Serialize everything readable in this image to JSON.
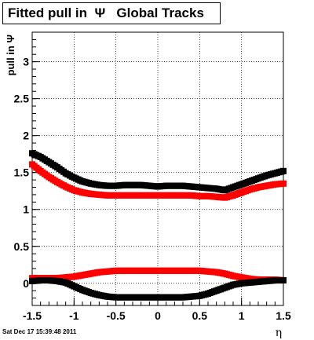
{
  "title": "Fitted pull in  Ψ   Global Tracks",
  "timestamp": "Sat Dec 17 15:39:48 2011",
  "chart_data": {
    "type": "scatter",
    "title": "Fitted pull in  Ψ   Global Tracks",
    "xlabel": "η",
    "ylabel": "pull in Ψ",
    "xlim": [
      -1.5,
      1.5
    ],
    "ylim": [
      -0.3,
      3.4
    ],
    "grid": true,
    "x_ticks": [
      "-1.5",
      "-1",
      "-0.5",
      "0",
      "0.5",
      "1",
      "1.5"
    ],
    "y_ticks": [
      "0",
      "0.5",
      "1",
      "1.5",
      "2",
      "2.5",
      "3"
    ],
    "x_tick_values": [
      -1.5,
      -1,
      -0.5,
      0,
      0.5,
      1,
      1.5
    ],
    "y_tick_values": [
      0,
      0.5,
      1,
      1.5,
      2,
      2.5,
      3
    ],
    "series": [
      {
        "color": "#000000",
        "x": [
          -1.5,
          -1.4,
          -1.3,
          -1.2,
          -1.1,
          -1.0,
          -0.9,
          -0.8,
          -0.7,
          -0.6,
          -0.5,
          -0.4,
          -0.3,
          -0.2,
          -0.1,
          0.0,
          0.1,
          0.2,
          0.3,
          0.4,
          0.5,
          0.6,
          0.7,
          0.8,
          0.9,
          1.0,
          1.1,
          1.2,
          1.3,
          1.4,
          1.5
        ],
        "y": [
          1.76,
          1.71,
          1.64,
          1.57,
          1.49,
          1.43,
          1.38,
          1.35,
          1.33,
          1.32,
          1.32,
          1.33,
          1.33,
          1.33,
          1.32,
          1.31,
          1.32,
          1.32,
          1.32,
          1.31,
          1.3,
          1.29,
          1.28,
          1.26,
          1.3,
          1.34,
          1.38,
          1.42,
          1.46,
          1.49,
          1.52
        ]
      },
      {
        "color": "#ff0000",
        "x": [
          -1.5,
          -1.4,
          -1.3,
          -1.2,
          -1.1,
          -1.0,
          -0.9,
          -0.8,
          -0.7,
          -0.6,
          -0.5,
          -0.4,
          -0.3,
          -0.2,
          -0.1,
          0.0,
          0.1,
          0.2,
          0.3,
          0.4,
          0.5,
          0.6,
          0.7,
          0.8,
          0.9,
          1.0,
          1.1,
          1.2,
          1.3,
          1.4,
          1.5
        ],
        "y": [
          1.61,
          1.52,
          1.44,
          1.37,
          1.31,
          1.26,
          1.23,
          1.21,
          1.2,
          1.19,
          1.19,
          1.19,
          1.19,
          1.19,
          1.19,
          1.19,
          1.19,
          1.19,
          1.19,
          1.19,
          1.18,
          1.18,
          1.17,
          1.16,
          1.19,
          1.23,
          1.27,
          1.3,
          1.32,
          1.34,
          1.35
        ]
      },
      {
        "color": "#ff0000",
        "x": [
          -1.5,
          -1.4,
          -1.3,
          -1.2,
          -1.1,
          -1.0,
          -0.9,
          -0.8,
          -0.7,
          -0.6,
          -0.5,
          -0.4,
          -0.3,
          -0.2,
          -0.1,
          0.0,
          0.1,
          0.2,
          0.3,
          0.4,
          0.5,
          0.6,
          0.7,
          0.8,
          0.9,
          1.0,
          1.1,
          1.2,
          1.3,
          1.4,
          1.5
        ],
        "y": [
          0.07,
          0.07,
          0.07,
          0.07,
          0.08,
          0.09,
          0.11,
          0.13,
          0.15,
          0.16,
          0.17,
          0.17,
          0.17,
          0.17,
          0.17,
          0.17,
          0.17,
          0.17,
          0.17,
          0.17,
          0.17,
          0.16,
          0.15,
          0.13,
          0.1,
          0.08,
          0.06,
          0.05,
          0.05,
          0.05,
          0.04
        ]
      },
      {
        "color": "#000000",
        "x": [
          -1.5,
          -1.4,
          -1.3,
          -1.2,
          -1.1,
          -1.0,
          -0.9,
          -0.8,
          -0.7,
          -0.6,
          -0.5,
          -0.4,
          -0.3,
          -0.2,
          -0.1,
          0.0,
          0.1,
          0.2,
          0.3,
          0.4,
          0.5,
          0.6,
          0.7,
          0.8,
          0.9,
          1.0,
          1.1,
          1.2,
          1.3,
          1.4,
          1.5
        ],
        "y": [
          0.03,
          0.04,
          0.04,
          0.03,
          0.01,
          -0.04,
          -0.09,
          -0.13,
          -0.16,
          -0.18,
          -0.19,
          -0.19,
          -0.19,
          -0.19,
          -0.19,
          -0.19,
          -0.19,
          -0.19,
          -0.19,
          -0.18,
          -0.17,
          -0.14,
          -0.1,
          -0.06,
          -0.02,
          0.0,
          0.01,
          0.02,
          0.03,
          0.04,
          0.04
        ]
      }
    ]
  }
}
